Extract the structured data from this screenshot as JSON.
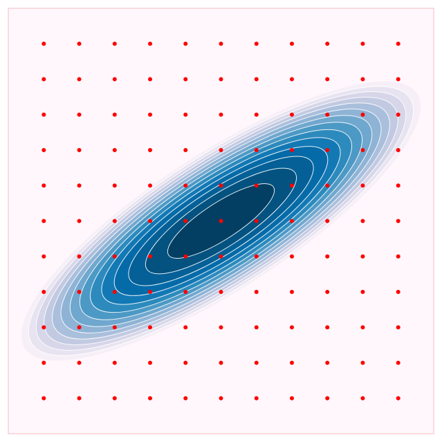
{
  "chart_data": {
    "type": "contour",
    "background_color": "#fff7fb",
    "colormap": "PuBu",
    "contour_line_color": "#ffffff",
    "grid_point_color": "#ff0000",
    "grid": false,
    "axes_visible": false,
    "xlim": [
      -1,
      1
    ],
    "ylim": [
      -1,
      1
    ],
    "density": {
      "distribution": "bivariate-gaussian",
      "mean": [
        0,
        0
      ],
      "std_major": 0.48,
      "std_minor": 0.14,
      "rotation_deg": 33,
      "levels": 14
    },
    "sample_points": {
      "x": [
        -1.0,
        -0.8,
        -0.6,
        -0.4,
        -0.2,
        0.0,
        0.2,
        0.4,
        0.6,
        0.8,
        1.0
      ],
      "y": [
        1.0,
        0.8,
        0.6,
        0.4,
        0.2,
        0.0,
        -0.2,
        -0.4,
        -0.6,
        -0.8,
        -1.0
      ]
    }
  }
}
